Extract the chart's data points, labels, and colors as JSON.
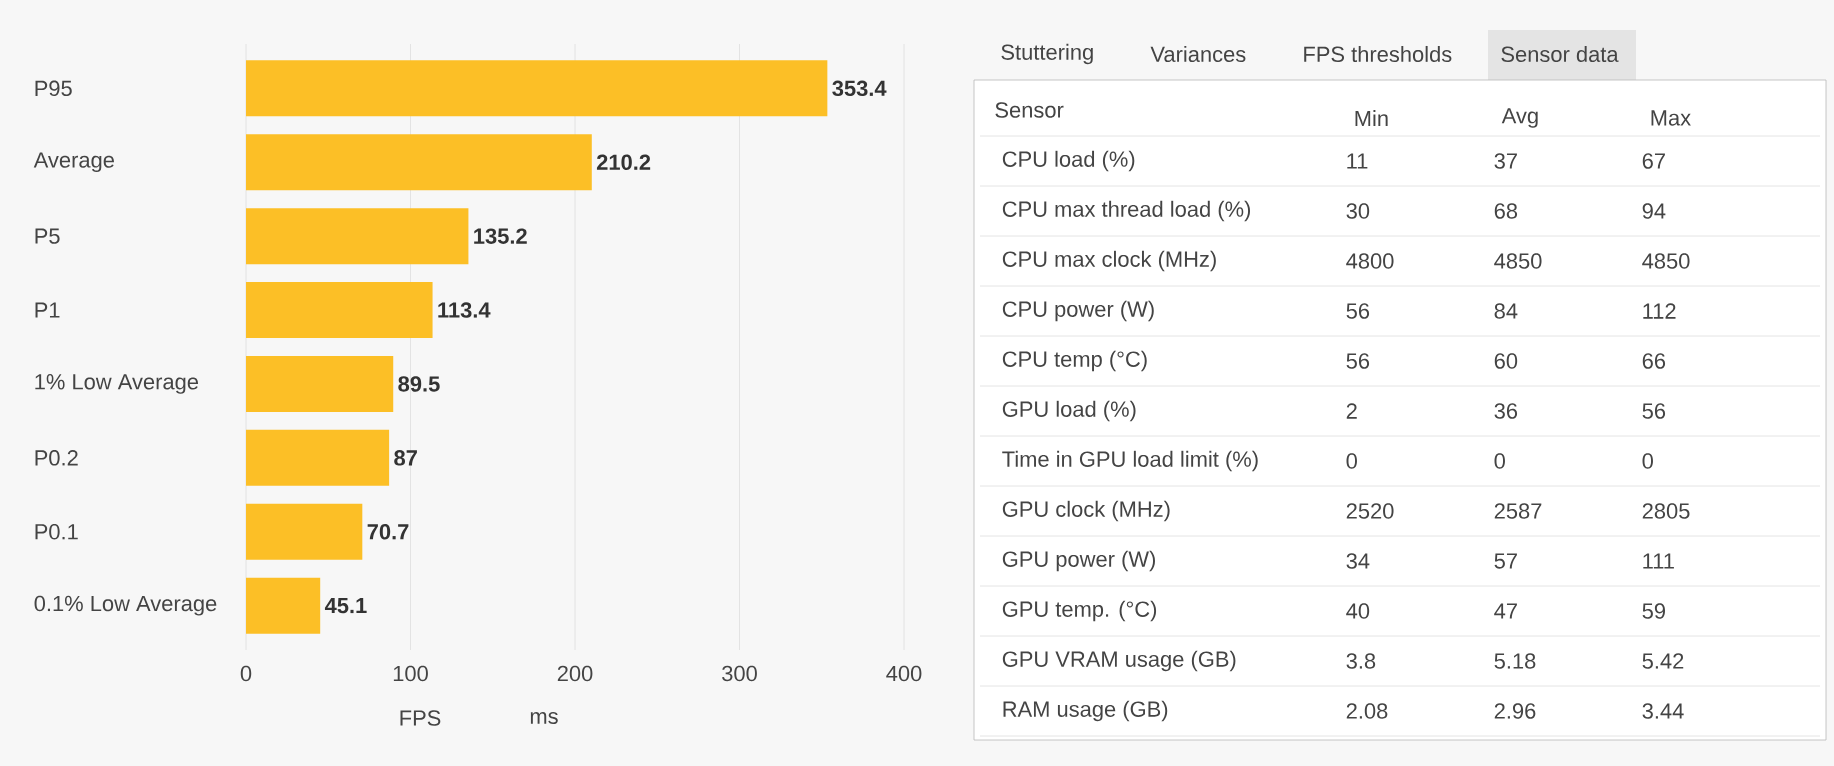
{
  "chart_data": [
    {
      "type": "bar",
      "orientation": "horizontal",
      "categories": [
        "P95",
        "Average",
        "P5",
        "P1",
        "1% Low Average",
        "P0.2",
        "P0.1",
        "0.1% Low Average"
      ],
      "values": [
        353.4,
        210.2,
        135.2,
        113.4,
        89.5,
        87,
        70.7,
        45.1
      ],
      "color": "#fcbf26",
      "data_labels": true,
      "grid": "x",
      "xlim": [
        0,
        400
      ],
      "xticks": [
        0,
        100,
        200,
        300,
        400
      ],
      "annotations": [
        "FPS",
        "ms"
      ]
    },
    {
      "type": "heatmap",
      "ylabel": "Sensor",
      "categories": [
        "Min",
        "Avg",
        "Max"
      ],
      "y_categories": [
        "CPU load (%)",
        "CPU max thread load (%)",
        "CPU max clock (MHz)",
        "CPU power (W)",
        "CPU temp (°C)",
        "GPU load (%)",
        "Time in GPU load limit (%)",
        "GPU clock (MHz)",
        "GPU power (W)",
        "GPU temp. (°C)",
        "GPU VRAM usage (GB)",
        "RAM usage (GB)"
      ],
      "cells": [
        [
          11,
          37,
          67
        ],
        [
          30,
          68,
          94
        ],
        [
          4800,
          4850,
          4850
        ],
        [
          56,
          84,
          112
        ],
        [
          56,
          60,
          66
        ],
        [
          2,
          36,
          56
        ],
        [
          0,
          0,
          0
        ],
        [
          2520,
          2587,
          2805
        ],
        [
          34,
          57,
          111
        ],
        [
          40,
          47,
          59
        ],
        [
          3.8,
          5.18,
          5.42
        ],
        [
          2.08,
          2.96,
          3.44
        ]
      ],
      "data_labels": true,
      "annotations": [
        "Stuttering",
        "Variances",
        "FPS thresholds",
        "Sensor data"
      ]
    }
  ]
}
